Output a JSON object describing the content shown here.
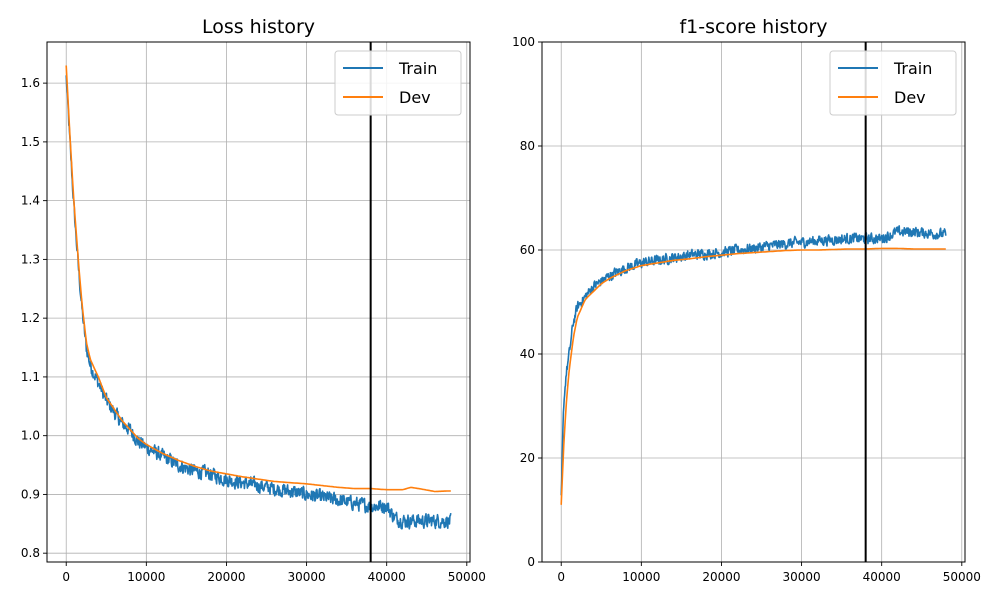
{
  "colors": {
    "train": "#1f77b4",
    "dev": "#ff7f0e",
    "grid": "#b0b0b0",
    "marker": "#000000"
  },
  "chart_data": [
    {
      "type": "line",
      "title": "Loss history",
      "xlabel": "",
      "ylabel": "",
      "xlim": [
        -2400,
        50400
      ],
      "ylim": [
        0.785,
        1.67
      ],
      "xticks": [
        0,
        10000,
        20000,
        30000,
        40000,
        50000
      ],
      "yticks": [
        0.8,
        0.9,
        1.0,
        1.1,
        1.2,
        1.3,
        1.4,
        1.5,
        1.6
      ],
      "tick_decimals": 1,
      "grid": true,
      "legend": "top-right",
      "vline_x": 38000,
      "series": [
        {
          "name": "Train",
          "color_key": "train",
          "noisy": true,
          "x": [
            0,
            500,
            1000,
            1500,
            2000,
            2500,
            3000,
            4000,
            5000,
            6000,
            7000,
            8000,
            9000,
            10000,
            12000,
            14000,
            16000,
            18000,
            20000,
            22000,
            24000,
            26000,
            28000,
            30000,
            32000,
            34000,
            36000,
            38000,
            40000,
            41000,
            42000,
            44000,
            46000,
            48000
          ],
          "y": [
            1.61,
            1.49,
            1.38,
            1.29,
            1.21,
            1.15,
            1.12,
            1.09,
            1.06,
            1.04,
            1.02,
            1.01,
            0.99,
            0.98,
            0.965,
            0.95,
            0.94,
            0.935,
            0.925,
            0.92,
            0.915,
            0.91,
            0.905,
            0.9,
            0.895,
            0.89,
            0.885,
            0.88,
            0.88,
            0.86,
            0.855,
            0.855,
            0.855,
            0.855
          ]
        },
        {
          "name": "Dev",
          "color_key": "dev",
          "noisy": false,
          "x": [
            0,
            500,
            1000,
            1500,
            2000,
            2500,
            3000,
            4000,
            5000,
            6000,
            7000,
            8000,
            9000,
            10000,
            12000,
            14000,
            16000,
            18000,
            20000,
            22000,
            24000,
            26000,
            28000,
            30000,
            32000,
            34000,
            36000,
            38000,
            40000,
            42000,
            43000,
            44000,
            46000,
            48000
          ],
          "y": [
            1.63,
            1.5,
            1.39,
            1.3,
            1.22,
            1.16,
            1.13,
            1.1,
            1.065,
            1.045,
            1.025,
            1.01,
            0.995,
            0.985,
            0.97,
            0.958,
            0.948,
            0.94,
            0.935,
            0.93,
            0.926,
            0.922,
            0.92,
            0.918,
            0.915,
            0.912,
            0.91,
            0.91,
            0.908,
            0.908,
            0.912,
            0.91,
            0.905,
            0.906
          ]
        }
      ]
    },
    {
      "type": "line",
      "title": "f1-score history",
      "xlabel": "",
      "ylabel": "",
      "xlim": [
        -2400,
        50400
      ],
      "ylim": [
        0,
        100
      ],
      "xticks": [
        0,
        10000,
        20000,
        30000,
        40000,
        50000
      ],
      "yticks": [
        0,
        20,
        40,
        60,
        80,
        100
      ],
      "tick_decimals": 0,
      "grid": true,
      "legend": "top-right",
      "vline_x": 38000,
      "series": [
        {
          "name": "Train",
          "color_key": "train",
          "noisy": true,
          "x": [
            0,
            300,
            600,
            1000,
            1500,
            2000,
            3000,
            4000,
            5000,
            6000,
            8000,
            10000,
            12000,
            14000,
            16000,
            18000,
            20000,
            22000,
            24000,
            26000,
            28000,
            30000,
            32000,
            34000,
            36000,
            38000,
            40000,
            42000,
            44000,
            46000,
            48000
          ],
          "y": [
            12,
            30,
            36,
            40,
            46,
            49,
            51,
            53,
            54,
            55,
            56.5,
            57.5,
            58,
            58.5,
            59,
            59.3,
            59.5,
            60,
            60.3,
            60.8,
            61.2,
            61.5,
            61.8,
            62,
            62.2,
            62.2,
            62.2,
            63.5,
            63.5,
            63.2,
            63
          ]
        },
        {
          "name": "Dev",
          "color_key": "dev",
          "noisy": false,
          "x": [
            0,
            300,
            600,
            1000,
            1500,
            2000,
            3000,
            4000,
            5000,
            6000,
            8000,
            10000,
            12000,
            14000,
            16000,
            18000,
            20000,
            22000,
            24000,
            26000,
            28000,
            30000,
            32000,
            34000,
            36000,
            38000,
            40000,
            42000,
            44000,
            46000,
            48000
          ],
          "y": [
            11,
            22,
            30,
            37,
            43,
            47,
            50.5,
            52,
            53.5,
            54.5,
            56,
            57,
            57.5,
            58,
            58.3,
            58.7,
            59,
            59.3,
            59.5,
            59.7,
            59.9,
            60,
            60,
            60.1,
            60.2,
            60.2,
            60.3,
            60.3,
            60.2,
            60.2,
            60.2
          ]
        }
      ]
    }
  ]
}
